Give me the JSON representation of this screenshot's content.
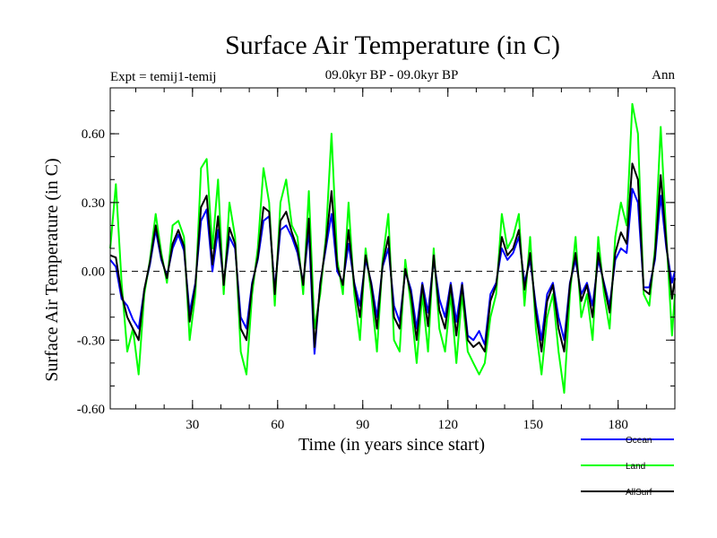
{
  "chart_data": {
    "type": "line",
    "title": "Surface Air Temperature (in C)",
    "subtitle": "09.0kyr BP - 09.0kyr BP",
    "left_label": "Expt = temij1-temij",
    "right_label": "Ann",
    "xlabel": "Time (in years since start)",
    "ylabel": "Surface Air Temperature (in C)",
    "xlim": [
      1,
      200
    ],
    "ylim": [
      -0.6,
      0.8
    ],
    "x_ticks": [
      30,
      60,
      90,
      120,
      150,
      180
    ],
    "x_tick_labels": [
      "30",
      "60",
      "90",
      "120",
      "150",
      "180"
    ],
    "y_ticks": [
      -0.6,
      -0.3,
      0.0,
      0.3,
      0.6
    ],
    "y_tick_labels": [
      "-0.60",
      "-0.30",
      "0.00",
      "0.30",
      "0.60"
    ],
    "zero_line": 0.0,
    "series": [
      {
        "name": "Ocean",
        "color": "#0000ff",
        "points": [
          [
            1,
            0.05
          ],
          [
            3,
            0.02
          ],
          [
            5,
            -0.12
          ],
          [
            7,
            -0.15
          ],
          [
            9,
            -0.21
          ],
          [
            11,
            -0.25
          ],
          [
            13,
            -0.08
          ],
          [
            15,
            0.03
          ],
          [
            17,
            0.18
          ],
          [
            19,
            0.05
          ],
          [
            21,
            -0.02
          ],
          [
            23,
            0.1
          ],
          [
            25,
            0.16
          ],
          [
            27,
            0.09
          ],
          [
            29,
            -0.18
          ],
          [
            31,
            -0.05
          ],
          [
            33,
            0.22
          ],
          [
            35,
            0.27
          ],
          [
            37,
            0.0
          ],
          [
            39,
            0.18
          ],
          [
            41,
            -0.05
          ],
          [
            43,
            0.15
          ],
          [
            45,
            0.1
          ],
          [
            47,
            -0.2
          ],
          [
            49,
            -0.25
          ],
          [
            51,
            -0.05
          ],
          [
            53,
            0.05
          ],
          [
            55,
            0.22
          ],
          [
            57,
            0.24
          ],
          [
            59,
            -0.08
          ],
          [
            61,
            0.18
          ],
          [
            63,
            0.2
          ],
          [
            65,
            0.15
          ],
          [
            67,
            0.08
          ],
          [
            69,
            -0.05
          ],
          [
            71,
            0.18
          ],
          [
            73,
            -0.36
          ],
          [
            75,
            -0.05
          ],
          [
            77,
            0.1
          ],
          [
            79,
            0.25
          ],
          [
            81,
            0.0
          ],
          [
            83,
            -0.05
          ],
          [
            85,
            0.12
          ],
          [
            87,
            -0.05
          ],
          [
            89,
            -0.15
          ],
          [
            91,
            0.05
          ],
          [
            93,
            -0.05
          ],
          [
            95,
            -0.2
          ],
          [
            97,
            0.02
          ],
          [
            99,
            0.1
          ],
          [
            101,
            -0.15
          ],
          [
            103,
            -0.22
          ],
          [
            105,
            0.0
          ],
          [
            107,
            -0.08
          ],
          [
            109,
            -0.25
          ],
          [
            111,
            -0.05
          ],
          [
            113,
            -0.18
          ],
          [
            115,
            0.05
          ],
          [
            117,
            -0.12
          ],
          [
            119,
            -0.2
          ],
          [
            121,
            -0.05
          ],
          [
            123,
            -0.22
          ],
          [
            125,
            -0.05
          ],
          [
            127,
            -0.28
          ],
          [
            129,
            -0.3
          ],
          [
            131,
            -0.26
          ],
          [
            133,
            -0.32
          ],
          [
            135,
            -0.1
          ],
          [
            137,
            -0.05
          ],
          [
            139,
            0.1
          ],
          [
            141,
            0.05
          ],
          [
            143,
            0.08
          ],
          [
            145,
            0.15
          ],
          [
            147,
            -0.05
          ],
          [
            149,
            0.05
          ],
          [
            151,
            -0.15
          ],
          [
            153,
            -0.3
          ],
          [
            155,
            -0.1
          ],
          [
            157,
            -0.05
          ],
          [
            159,
            -0.2
          ],
          [
            161,
            -0.3
          ],
          [
            163,
            -0.05
          ],
          [
            165,
            0.05
          ],
          [
            167,
            -0.1
          ],
          [
            169,
            -0.05
          ],
          [
            171,
            -0.15
          ],
          [
            173,
            0.05
          ],
          [
            175,
            -0.05
          ],
          [
            177,
            -0.15
          ],
          [
            179,
            0.05
          ],
          [
            181,
            0.1
          ],
          [
            183,
            0.08
          ],
          [
            185,
            0.36
          ],
          [
            187,
            0.3
          ],
          [
            189,
            -0.07
          ],
          [
            191,
            -0.07
          ],
          [
            193,
            0.05
          ],
          [
            195,
            0.33
          ],
          [
            197,
            0.1
          ],
          [
            199,
            -0.05
          ],
          [
            200,
            0.0
          ]
        ]
      },
      {
        "name": "Land",
        "color": "#00ff00",
        "points": [
          [
            1,
            0.1
          ],
          [
            3,
            0.38
          ],
          [
            5,
            -0.05
          ],
          [
            7,
            -0.35
          ],
          [
            9,
            -0.25
          ],
          [
            11,
            -0.45
          ],
          [
            13,
            -0.1
          ],
          [
            15,
            0.05
          ],
          [
            17,
            0.25
          ],
          [
            19,
            0.08
          ],
          [
            21,
            -0.05
          ],
          [
            23,
            0.2
          ],
          [
            25,
            0.22
          ],
          [
            27,
            0.15
          ],
          [
            29,
            -0.3
          ],
          [
            31,
            -0.1
          ],
          [
            33,
            0.45
          ],
          [
            35,
            0.49
          ],
          [
            37,
            0.1
          ],
          [
            39,
            0.4
          ],
          [
            41,
            -0.1
          ],
          [
            43,
            0.3
          ],
          [
            45,
            0.15
          ],
          [
            47,
            -0.35
          ],
          [
            49,
            -0.45
          ],
          [
            51,
            -0.1
          ],
          [
            53,
            0.1
          ],
          [
            55,
            0.45
          ],
          [
            57,
            0.3
          ],
          [
            59,
            -0.15
          ],
          [
            61,
            0.3
          ],
          [
            63,
            0.4
          ],
          [
            65,
            0.2
          ],
          [
            67,
            0.15
          ],
          [
            69,
            -0.1
          ],
          [
            71,
            0.35
          ],
          [
            73,
            -0.25
          ],
          [
            75,
            -0.1
          ],
          [
            77,
            0.15
          ],
          [
            79,
            0.6
          ],
          [
            81,
            0.05
          ],
          [
            83,
            -0.1
          ],
          [
            85,
            0.3
          ],
          [
            87,
            -0.1
          ],
          [
            89,
            -0.3
          ],
          [
            91,
            0.1
          ],
          [
            93,
            -0.1
          ],
          [
            95,
            -0.35
          ],
          [
            97,
            0.05
          ],
          [
            99,
            0.25
          ],
          [
            101,
            -0.3
          ],
          [
            103,
            -0.35
          ],
          [
            105,
            0.05
          ],
          [
            107,
            -0.15
          ],
          [
            109,
            -0.4
          ],
          [
            111,
            -0.1
          ],
          [
            113,
            -0.35
          ],
          [
            115,
            0.1
          ],
          [
            117,
            -0.25
          ],
          [
            119,
            -0.35
          ],
          [
            121,
            -0.1
          ],
          [
            123,
            -0.4
          ],
          [
            125,
            -0.1
          ],
          [
            127,
            -0.35
          ],
          [
            129,
            -0.4
          ],
          [
            131,
            -0.45
          ],
          [
            133,
            -0.4
          ],
          [
            135,
            -0.2
          ],
          [
            137,
            -0.1
          ],
          [
            139,
            0.25
          ],
          [
            141,
            0.1
          ],
          [
            143,
            0.15
          ],
          [
            145,
            0.25
          ],
          [
            147,
            -0.15
          ],
          [
            149,
            0.15
          ],
          [
            151,
            -0.25
          ],
          [
            153,
            -0.45
          ],
          [
            155,
            -0.2
          ],
          [
            157,
            -0.1
          ],
          [
            159,
            -0.35
          ],
          [
            161,
            -0.53
          ],
          [
            163,
            -0.1
          ],
          [
            165,
            0.15
          ],
          [
            167,
            -0.2
          ],
          [
            169,
            -0.1
          ],
          [
            171,
            -0.3
          ],
          [
            173,
            0.15
          ],
          [
            175,
            -0.1
          ],
          [
            177,
            -0.25
          ],
          [
            179,
            0.15
          ],
          [
            181,
            0.3
          ],
          [
            183,
            0.2
          ],
          [
            185,
            0.73
          ],
          [
            187,
            0.6
          ],
          [
            189,
            -0.1
          ],
          [
            191,
            -0.15
          ],
          [
            193,
            0.1
          ],
          [
            195,
            0.63
          ],
          [
            197,
            0.15
          ],
          [
            199,
            -0.28
          ],
          [
            200,
            -0.1
          ]
        ]
      },
      {
        "name": "AllSurf",
        "color": "#000000",
        "points": [
          [
            1,
            0.07
          ],
          [
            3,
            0.06
          ],
          [
            5,
            -0.1
          ],
          [
            7,
            -0.2
          ],
          [
            9,
            -0.25
          ],
          [
            11,
            -0.3
          ],
          [
            13,
            -0.08
          ],
          [
            15,
            0.04
          ],
          [
            17,
            0.2
          ],
          [
            19,
            0.06
          ],
          [
            21,
            -0.03
          ],
          [
            23,
            0.12
          ],
          [
            25,
            0.18
          ],
          [
            27,
            0.11
          ],
          [
            29,
            -0.22
          ],
          [
            31,
            -0.06
          ],
          [
            33,
            0.28
          ],
          [
            35,
            0.33
          ],
          [
            37,
            0.03
          ],
          [
            39,
            0.24
          ],
          [
            41,
            -0.06
          ],
          [
            43,
            0.19
          ],
          [
            45,
            0.12
          ],
          [
            47,
            -0.25
          ],
          [
            49,
            -0.3
          ],
          [
            51,
            -0.06
          ],
          [
            53,
            0.06
          ],
          [
            55,
            0.28
          ],
          [
            57,
            0.26
          ],
          [
            59,
            -0.1
          ],
          [
            61,
            0.22
          ],
          [
            63,
            0.26
          ],
          [
            65,
            0.17
          ],
          [
            67,
            0.1
          ],
          [
            69,
            -0.06
          ],
          [
            71,
            0.23
          ],
          [
            73,
            -0.33
          ],
          [
            75,
            -0.06
          ],
          [
            77,
            0.12
          ],
          [
            79,
            0.35
          ],
          [
            81,
            0.02
          ],
          [
            83,
            -0.06
          ],
          [
            85,
            0.18
          ],
          [
            87,
            -0.06
          ],
          [
            89,
            -0.2
          ],
          [
            91,
            0.07
          ],
          [
            93,
            -0.06
          ],
          [
            95,
            -0.25
          ],
          [
            97,
            0.03
          ],
          [
            99,
            0.15
          ],
          [
            101,
            -0.2
          ],
          [
            103,
            -0.25
          ],
          [
            105,
            0.01
          ],
          [
            107,
            -0.1
          ],
          [
            109,
            -0.3
          ],
          [
            111,
            -0.06
          ],
          [
            113,
            -0.24
          ],
          [
            115,
            0.07
          ],
          [
            117,
            -0.17
          ],
          [
            119,
            -0.25
          ],
          [
            121,
            -0.06
          ],
          [
            123,
            -0.28
          ],
          [
            125,
            -0.06
          ],
          [
            127,
            -0.3
          ],
          [
            129,
            -0.33
          ],
          [
            131,
            -0.31
          ],
          [
            133,
            -0.35
          ],
          [
            135,
            -0.13
          ],
          [
            137,
            -0.06
          ],
          [
            139,
            0.15
          ],
          [
            141,
            0.07
          ],
          [
            143,
            0.1
          ],
          [
            145,
            0.18
          ],
          [
            147,
            -0.08
          ],
          [
            149,
            0.08
          ],
          [
            151,
            -0.18
          ],
          [
            153,
            -0.35
          ],
          [
            155,
            -0.13
          ],
          [
            157,
            -0.06
          ],
          [
            159,
            -0.25
          ],
          [
            161,
            -0.35
          ],
          [
            163,
            -0.06
          ],
          [
            165,
            0.08
          ],
          [
            167,
            -0.13
          ],
          [
            169,
            -0.06
          ],
          [
            171,
            -0.2
          ],
          [
            173,
            0.08
          ],
          [
            175,
            -0.06
          ],
          [
            177,
            -0.18
          ],
          [
            179,
            0.08
          ],
          [
            181,
            0.17
          ],
          [
            183,
            0.12
          ],
          [
            185,
            0.47
          ],
          [
            187,
            0.4
          ],
          [
            189,
            -0.08
          ],
          [
            191,
            -0.1
          ],
          [
            193,
            0.07
          ],
          [
            195,
            0.42
          ],
          [
            197,
            0.12
          ],
          [
            199,
            -0.12
          ],
          [
            200,
            -0.03
          ]
        ]
      }
    ],
    "legend": {
      "placement": "bottom-right",
      "entries": [
        "Ocean",
        "Land",
        "AllSurf"
      ]
    }
  }
}
